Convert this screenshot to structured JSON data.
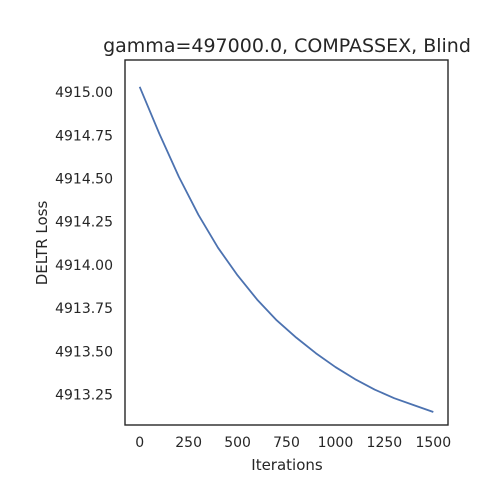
{
  "chart_data": {
    "type": "line",
    "title": "gamma=497000.0, COMPASSEX, Blind",
    "xlabel": "Iterations",
    "ylabel": "DELTR Loss",
    "xlim": [
      -75,
      1575
    ],
    "ylim": [
      4913.075,
      4915.185
    ],
    "x_ticks": [
      0,
      250,
      500,
      750,
      1000,
      1250,
      1500
    ],
    "x_tick_labels": [
      "0",
      "250",
      "500",
      "750",
      "1000",
      "1250",
      "1500"
    ],
    "y_ticks": [
      4913.25,
      4913.5,
      4913.75,
      4914.0,
      4914.25,
      4914.5,
      4914.75,
      4915.0
    ],
    "y_tick_labels": [
      "4913.25",
      "4913.50",
      "4913.75",
      "4914.00",
      "4914.25",
      "4914.50",
      "4914.75",
      "4915.00"
    ],
    "grid": false,
    "line_color": "#4c72b0",
    "series": [
      {
        "x": [
          0,
          100,
          200,
          300,
          400,
          500,
          600,
          700,
          800,
          900,
          1000,
          1100,
          1200,
          1300,
          1400,
          1500
        ],
        "values": [
          4915.03,
          4914.76,
          4914.51,
          4914.29,
          4914.1,
          4913.94,
          4913.8,
          4913.68,
          4913.58,
          4913.49,
          4913.41,
          4913.34,
          4913.28,
          4913.23,
          4913.19,
          4913.15
        ]
      }
    ]
  }
}
